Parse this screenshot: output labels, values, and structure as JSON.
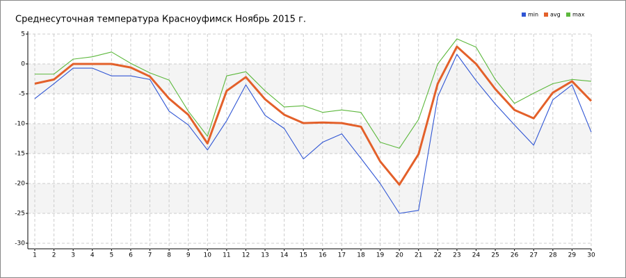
{
  "chart_data": {
    "type": "line",
    "title": "Среднесуточная температура Красноуфимск  Ноябрь 2015 г.",
    "x": [
      1,
      2,
      3,
      4,
      5,
      6,
      7,
      8,
      9,
      10,
      11,
      12,
      13,
      14,
      15,
      16,
      17,
      18,
      19,
      20,
      21,
      22,
      23,
      24,
      25,
      26,
      27,
      28,
      29,
      30
    ],
    "xlim": [
      1,
      30
    ],
    "series": [
      {
        "name": "min",
        "color": "#2f55d4",
        "values": [
          -5.8,
          -3.3,
          -0.7,
          -0.7,
          -2.0,
          -2.0,
          -2.6,
          -7.9,
          -10.2,
          -14.4,
          -9.5,
          -3.5,
          -8.6,
          -10.8,
          -15.9,
          -13.1,
          -11.7,
          -15.8,
          -20.0,
          -25.0,
          -24.5,
          -5.5,
          1.6,
          -2.8,
          -6.7,
          -10.2,
          -13.6,
          -6.0,
          -3.5,
          -11.4
        ]
      },
      {
        "name": "avg",
        "color": "#e3602a",
        "values": [
          -3.3,
          -2.6,
          0.0,
          0.0,
          0.0,
          -0.6,
          -2.1,
          -5.8,
          -8.5,
          -13.3,
          -4.5,
          -2.2,
          -5.9,
          -8.5,
          -9.9,
          -9.8,
          -9.9,
          -10.5,
          -16.3,
          -20.2,
          -15.1,
          -3.3,
          2.9,
          0.0,
          -4.2,
          -7.7,
          -9.1,
          -4.8,
          -2.9,
          -6.2
        ]
      },
      {
        "name": "max",
        "color": "#5cb83c",
        "values": [
          -1.7,
          -1.7,
          0.8,
          1.2,
          2.0,
          0.1,
          -1.5,
          -2.7,
          -7.9,
          -12.1,
          -2.0,
          -1.3,
          -4.5,
          -7.2,
          -7.0,
          -8.1,
          -7.7,
          -8.1,
          -13.1,
          -14.1,
          -9.3,
          0.0,
          4.2,
          2.8,
          -2.6,
          -6.6,
          -4.9,
          -3.3,
          -2.6,
          -2.9
        ]
      }
    ],
    "ylim": [
      -30,
      5
    ],
    "yticks": [
      5,
      0,
      -5,
      -10,
      -15,
      -20,
      -25,
      -30
    ],
    "grid": true
  }
}
